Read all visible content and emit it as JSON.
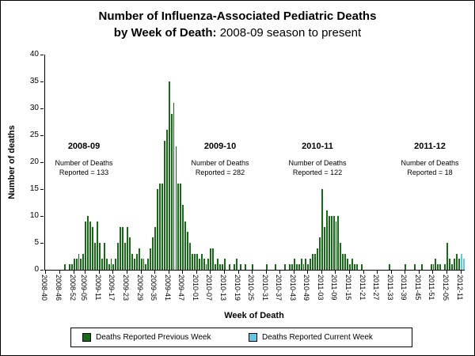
{
  "title": {
    "line1": "Number of Influenza-Associated Pediatric Deaths",
    "line2_bold": "by Week of Death:",
    "line2_normal": " 2008-09 season to present"
  },
  "axes": {
    "y_title": "Number of deaths",
    "x_title": "Week of Death"
  },
  "legend": {
    "items": [
      {
        "label": "Deaths Reported Previous Week",
        "color": "#146c14"
      },
      {
        "label": "Deaths Reported Current Week",
        "color": "#5fc8e8"
      }
    ]
  },
  "chart_data": {
    "type": "bar",
    "title": "Number of Influenza-Associated Pediatric Deaths by Week of Death: 2008-09 season to present",
    "xlabel": "Week of Death",
    "ylabel": "Number of deaths",
    "ylim": [
      0,
      40
    ],
    "ytick_step": 5,
    "grid": false,
    "legend_position": "bottom",
    "weeks_spec": [
      {
        "year": "2008",
        "start": 40,
        "end": 52
      },
      {
        "year": "2009",
        "start": 1,
        "end": 52
      },
      {
        "year": "2010",
        "start": 1,
        "end": 52
      },
      {
        "year": "2011",
        "start": 1,
        "end": 52
      },
      {
        "year": "2012",
        "start": 1,
        "end": 12
      }
    ],
    "x_tick_labels": [
      "2008-40",
      "2008-46",
      "2008-52",
      "2009-05",
      "2009-11",
      "2009-17",
      "2009-23",
      "2009-29",
      "2009-35",
      "2009-41",
      "2009-47",
      "2010-01",
      "2010-07",
      "2010-13",
      "2010-19",
      "2010-25",
      "2010-31",
      "2010-37",
      "2010-43",
      "2010-49",
      "2011-03",
      "2011-09",
      "2011-15",
      "2011-21",
      "2011-27",
      "2011-33",
      "2011-39",
      "2011-45",
      "2011-51",
      "2012-05",
      "2012-11"
    ],
    "series": [
      {
        "name": "Deaths Reported Previous Week",
        "color": "#146c14",
        "values": [
          0,
          0,
          0,
          0,
          0,
          0,
          0,
          0,
          1,
          0,
          1,
          1,
          2,
          2,
          3,
          2,
          3,
          9,
          10,
          9,
          8,
          5,
          9,
          5,
          2,
          5,
          2,
          1,
          2,
          1,
          2,
          5,
          8,
          8,
          5,
          8,
          6,
          3,
          2,
          3,
          4,
          2,
          2,
          1,
          2,
          4,
          6,
          8,
          15,
          16,
          16,
          24,
          26,
          35,
          29,
          31,
          23,
          16,
          16,
          12,
          9,
          7,
          5,
          3,
          3,
          3,
          2,
          3,
          2,
          1,
          2,
          4,
          4,
          1,
          2,
          1,
          1,
          2,
          0,
          1,
          0,
          1,
          2,
          0,
          1,
          0,
          1,
          0,
          0,
          1,
          0,
          0,
          0,
          0,
          0,
          1,
          0,
          0,
          0,
          1,
          0,
          0,
          0,
          1,
          0,
          1,
          1,
          2,
          1,
          1,
          2,
          1,
          2,
          1,
          2,
          3,
          3,
          4,
          6,
          15,
          8,
          11,
          10,
          10,
          10,
          9,
          10,
          5,
          3,
          3,
          2,
          1,
          2,
          1,
          1,
          0,
          1,
          0,
          0,
          0,
          0,
          0,
          0,
          0,
          0,
          0,
          0,
          0,
          1,
          0,
          0,
          0,
          0,
          0,
          0,
          1,
          0,
          0,
          0,
          1,
          0,
          0,
          1,
          0,
          0,
          0,
          1,
          1,
          2,
          1,
          1,
          0,
          1,
          5,
          2,
          1,
          2,
          3,
          2,
          0,
          0
        ]
      },
      {
        "name": "Deaths Reported Current Week",
        "color": "#5fc8e8",
        "points": [
          {
            "week": "2012-11",
            "value": 3
          },
          {
            "week": "2012-12",
            "value": 2
          }
        ]
      }
    ],
    "annotations": [
      {
        "season": "2008-09",
        "detail_line1": "Number of Deaths",
        "detail_line2": "Reported = 133"
      },
      {
        "season": "2009-10",
        "detail_line1": "Number of Deaths",
        "detail_line2": "Reported = 282"
      },
      {
        "season": "2010-11",
        "detail_line1": "Number of Deaths",
        "detail_line2": "Reported = 122"
      },
      {
        "season": "2011-12",
        "detail_line1": "Number of Deaths",
        "detail_line2": "Reported = 18"
      }
    ]
  }
}
